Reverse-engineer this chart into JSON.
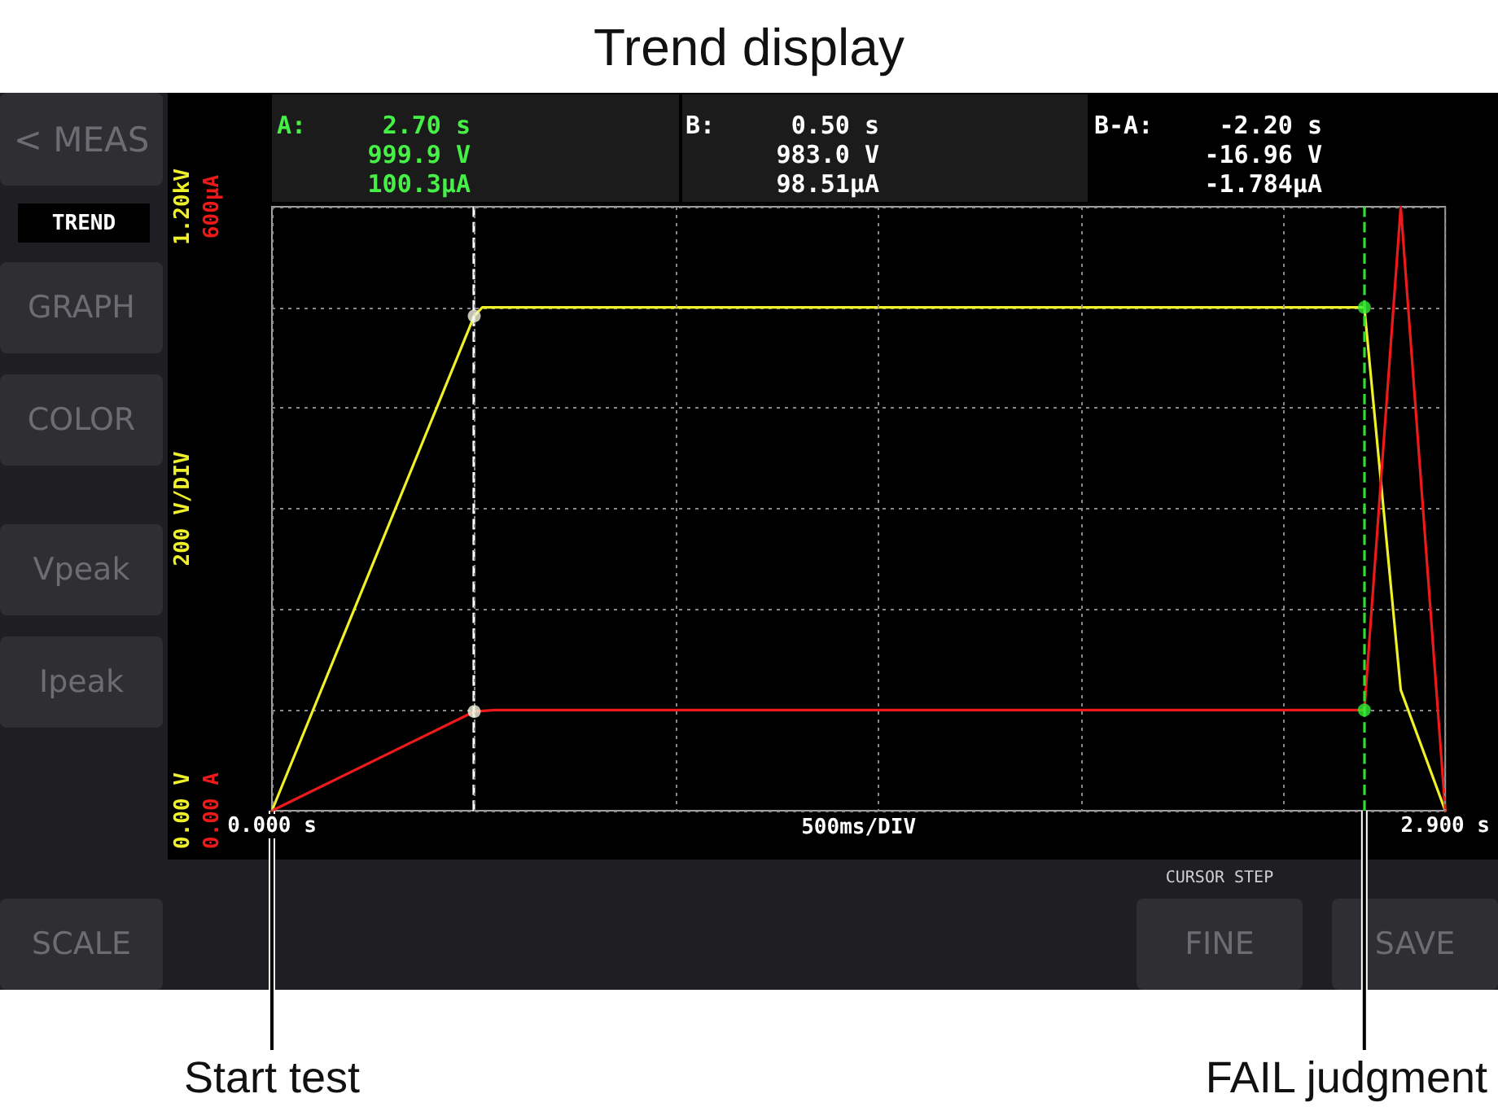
{
  "chart_data": {
    "type": "line",
    "title": "Trend display",
    "xlabel": "500ms/DIV",
    "ylabel": "200 V/DIV",
    "xlim": [
      0,
      2.9
    ],
    "xticks": [
      {
        "value": 0,
        "label": "0.000 s"
      },
      {
        "value": 0.5,
        "label": null
      },
      {
        "value": 1,
        "label": null
      },
      {
        "value": 1.5,
        "label": null
      },
      {
        "value": 2,
        "label": null
      },
      {
        "value": 2.5,
        "label": null
      },
      {
        "value": 2.9,
        "label": "2.900 s"
      }
    ],
    "ylim": [
      0,
      1.2
    ],
    "yticks": [
      {
        "value": 0,
        "label": "0.00 V"
      },
      {
        "value": 0.2,
        "label": null
      },
      {
        "value": 0.4,
        "label": null
      },
      {
        "value": 0.6,
        "label": null
      },
      {
        "value": 0.8,
        "label": null
      },
      {
        "value": 1.0,
        "label": null
      },
      {
        "value": 1.2,
        "label": "1.20kV"
      }
    ],
    "y2lim": [
      0,
      600
    ],
    "y2ticks": [
      {
        "value": 0,
        "label": "0.00 A"
      },
      {
        "value": 600,
        "label": "600µA"
      }
    ],
    "grid": true,
    "marker": "none",
    "series": [
      {
        "color": "#f0f028",
        "x": [
          0,
          0.5,
          0.52,
          2.7,
          2.79,
          2.9
        ],
        "values": [
          0,
          0.983,
          1.0,
          1.0,
          0.24,
          0
        ]
      },
      {
        "color": "#ee1a1a",
        "axis": "y2",
        "x": [
          0,
          0.5,
          0.55,
          2.7,
          2.79,
          2.9
        ],
        "values": [
          0,
          98.5,
          100,
          100,
          600,
          0
        ]
      },
      {
        "type": "scatter",
        "marker": "circle",
        "color": "#f2f2dc",
        "x": [
          0.5
        ],
        "values": [
          0.983
        ]
      },
      {
        "type": "scatter",
        "marker": "circle",
        "color": "#f2f2dc",
        "axis": "y2",
        "x": [
          0.5
        ],
        "values": [
          98.5
        ]
      },
      {
        "type": "scatter",
        "marker": "circle",
        "color": "#33ee33",
        "x": [
          2.7
        ],
        "values": [
          1.0
        ]
      },
      {
        "type": "scatter",
        "marker": "circle",
        "color": "#33ee33",
        "axis": "y2",
        "x": [
          2.7
        ],
        "values": [
          100
        ]
      }
    ],
    "ref_lines": [
      {
        "axis": "x",
        "value": 0.5,
        "color": "#ffffff",
        "line_style": "dashed"
      },
      {
        "axis": "x",
        "value": 2.7,
        "color": "#33dd33",
        "line_style": "dashed"
      }
    ],
    "annotations": [
      "A:",
      "2.70 s",
      "999.9 V",
      "100.3µA",
      "B:",
      "0.50 s",
      "983.0 V",
      "98.51µA",
      "B-A:",
      "-2.20 s",
      "-16.96 V",
      "-1.784µA",
      "< MEAS",
      "TREND",
      "GRAPH",
      "COLOR",
      "Vpeak",
      "Ipeak",
      "SCALE",
      "CURSOR STEP",
      "FINE",
      "SAVE",
      "Start test",
      "FAIL judgment"
    ]
  }
}
